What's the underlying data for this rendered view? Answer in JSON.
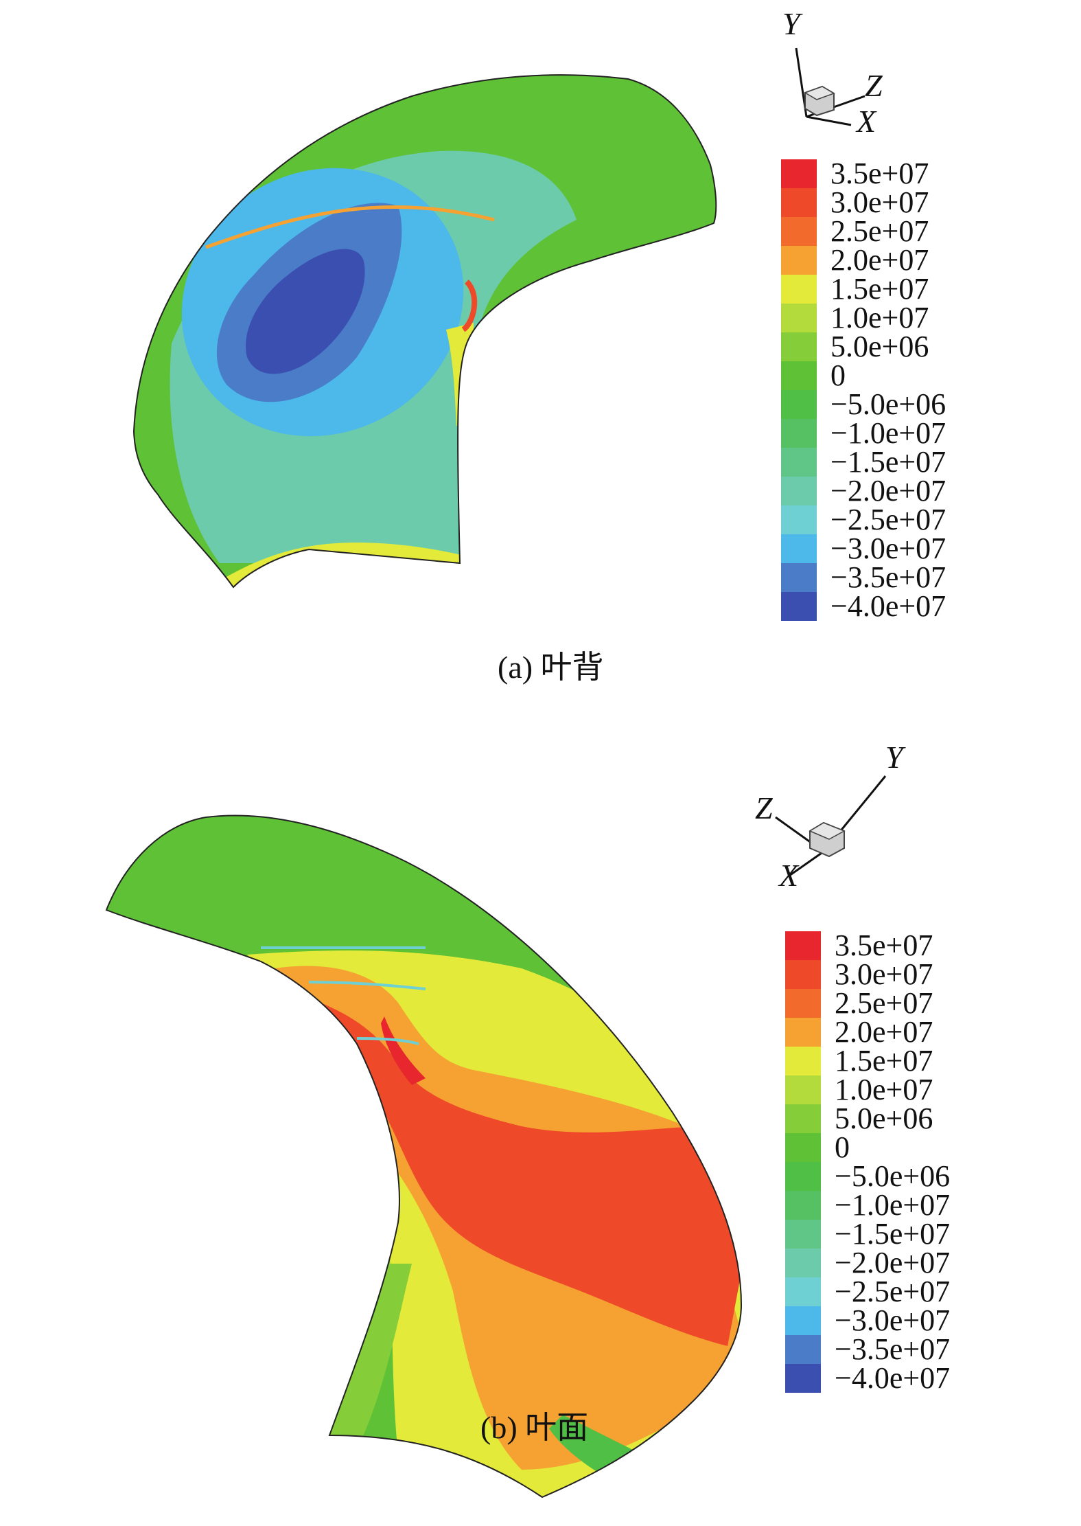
{
  "colorbar": {
    "levels": [
      {
        "label": "3.5e+07",
        "color": "#e8262e"
      },
      {
        "label": "3.0e+07",
        "color": "#ee4a2a"
      },
      {
        "label": "2.5e+07",
        "color": "#f26a2c"
      },
      {
        "label": "2.0e+07",
        "color": "#f5a232"
      },
      {
        "label": "1.5e+07",
        "color": "#e3ea3a"
      },
      {
        "label": "1.0e+07",
        "color": "#b3db3c"
      },
      {
        "label": "5.0e+06",
        "color": "#86cd3a"
      },
      {
        "label": "0",
        "color": "#5fc136"
      },
      {
        "label": "−5.0e+06",
        "color": "#4fbf45"
      },
      {
        "label": "−1.0e+07",
        "color": "#55c163"
      },
      {
        "label": "−1.5e+07",
        "color": "#5fc688"
      },
      {
        "label": "−2.0e+07",
        "color": "#6ccbaa"
      },
      {
        "label": "−2.5e+07",
        "color": "#6fd0d4"
      },
      {
        "label": "−3.0e+07",
        "color": "#4db8ea"
      },
      {
        "label": "−3.5e+07",
        "color": "#4a7cc8"
      },
      {
        "label": "−4.0e+07",
        "color": "#3a4fb0"
      }
    ]
  },
  "panel_a": {
    "caption": "(a) 叶背",
    "axes": {
      "x": "X",
      "y": "Y",
      "z": "Z"
    }
  },
  "panel_b": {
    "caption": "(b) 叶面",
    "axes": {
      "x": "X",
      "y": "Y",
      "z": "Z"
    }
  }
}
